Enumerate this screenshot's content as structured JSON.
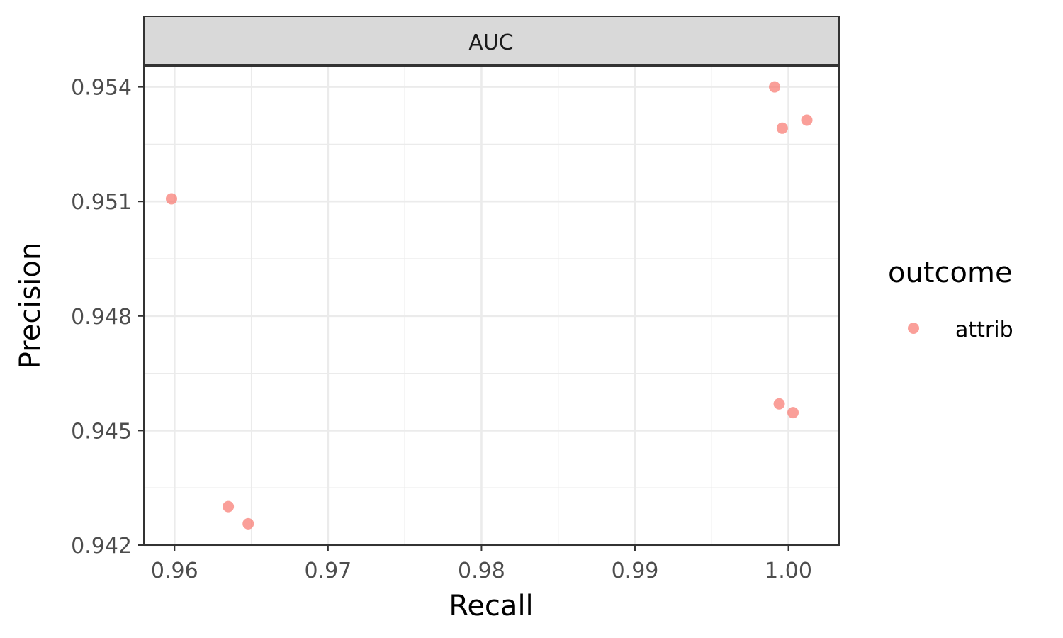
{
  "chart_data": {
    "type": "scatter",
    "facet_label": "AUC",
    "xlabel": "Recall",
    "ylabel": "Precision",
    "xlim": [
      0.958,
      1.0033
    ],
    "ylim": [
      0.942,
      0.95455
    ],
    "x_ticks": [
      0.96,
      0.97,
      0.98,
      0.99,
      1.0
    ],
    "x_tick_labels": [
      "0.96",
      "0.97",
      "0.98",
      "0.99",
      "1.00"
    ],
    "y_ticks": [
      0.942,
      0.945,
      0.948,
      0.951,
      0.954
    ],
    "y_tick_labels": [
      "0.942",
      "0.945",
      "0.948",
      "0.951",
      "0.954"
    ],
    "grid": true,
    "legend": {
      "title": "outcome",
      "position": "right"
    },
    "series": [
      {
        "name": "attrib",
        "color": "#F8766D",
        "points": [
          {
            "x": 0.9991,
            "y": 0.954
          },
          {
            "x": 1.0012,
            "y": 0.95313
          },
          {
            "x": 0.9996,
            "y": 0.95292
          },
          {
            "x": 0.9598,
            "y": 0.95107
          },
          {
            "x": 0.9994,
            "y": 0.9457
          },
          {
            "x": 1.0003,
            "y": 0.94547
          },
          {
            "x": 0.9635,
            "y": 0.94301
          },
          {
            "x": 0.9648,
            "y": 0.94256
          }
        ]
      }
    ]
  }
}
